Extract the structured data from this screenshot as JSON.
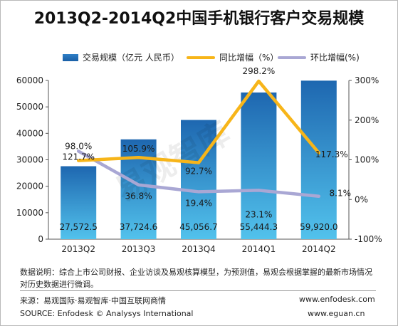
{
  "title": "2013Q2-2014Q2中国手机银行客户交易规模",
  "legend": {
    "bar": "交易规模（亿元 人民币）",
    "yoy": "同比增幅（%）",
    "qoq": "环比增幅(%)"
  },
  "watermark": "易观智库",
  "colors": {
    "bar_top": "#1e67b0",
    "bar_bottom": "#52c2ec",
    "yoy": "#f7b519",
    "qoq": "#a9a7d4"
  },
  "chart_data": {
    "type": "bar",
    "categories": [
      "2013Q2",
      "2013Q3",
      "2013Q4",
      "2014Q1",
      "2014Q2"
    ],
    "series": [
      {
        "name": "交易规模（亿元 人民币）",
        "type": "bar",
        "axis": "left",
        "values": [
          27572.5,
          37724.6,
          45056.7,
          55444.3,
          59920.0
        ],
        "labels": [
          "27,572.5",
          "37,724.6",
          "45,056.7",
          "55,444.3",
          "59,920.0"
        ]
      },
      {
        "name": "同比增幅（%）",
        "type": "line",
        "axis": "right",
        "values": [
          98.0,
          105.9,
          92.7,
          298.2,
          117.3
        ],
        "labels": [
          "98.0%",
          "105.9%",
          "92.7%",
          "298.2%",
          "117.3%"
        ]
      },
      {
        "name": "环比增幅(%)",
        "type": "line",
        "axis": "right",
        "values": [
          121.7,
          36.8,
          19.4,
          23.1,
          8.1
        ],
        "labels": [
          "121.7%",
          "36.8%",
          "19.4%",
          "23.1%",
          "8.1%"
        ]
      }
    ],
    "y_left": {
      "lim": [
        0,
        60000
      ],
      "ticks": [
        "0",
        "10000",
        "20000",
        "30000",
        "40000",
        "50000",
        "60000"
      ]
    },
    "y_right": {
      "lim": [
        -100,
        300
      ],
      "ticks": [
        "-100%",
        "0%",
        "100%",
        "200%",
        "300%"
      ]
    },
    "grid": false,
    "legend_position": "top"
  },
  "note": "数据说明：综合上市公司财报、企业访谈及易观核算模型，为预测值，易观会根据掌握的最新市场情况对历史数据进行微调。",
  "source_cn": "来源：易观国际·易观智库·中国互联网商情",
  "source_en": "SOURCE: Enfodesk © Analysys International",
  "url1": "www.enfodesk.com",
  "url2": "www.eguan.cn"
}
